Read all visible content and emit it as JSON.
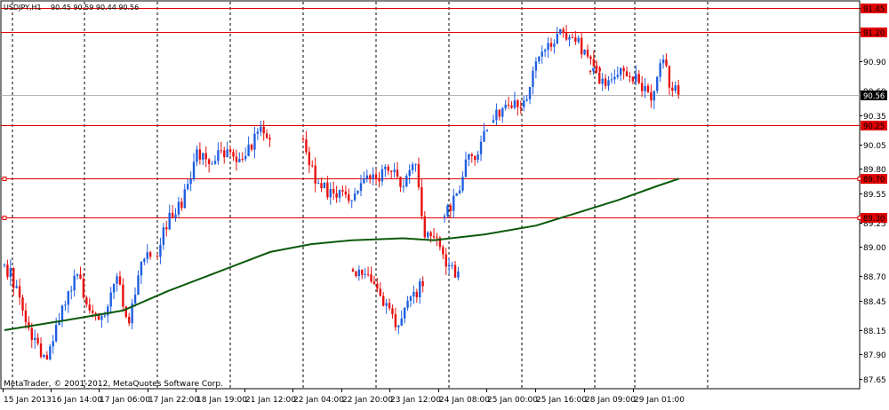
{
  "header": {
    "symbol": "USDJPY,H1",
    "ohlc": "90.45 90.59 90.44 90.56"
  },
  "footer": {
    "copyright": "MetaTrader, © 2001-2012, MetaQuotes Software Corp."
  },
  "colors": {
    "bull": "#1f5fe0",
    "bear": "#e81010",
    "level": "#e00000",
    "ma": "#0a5a0a",
    "grid": "#000000"
  },
  "chart_data": {
    "type": "candlestick",
    "symbol": "USDJPY",
    "timeframe": "H1",
    "ylim": [
      87.55,
      91.52
    ],
    "y_ticks": [
      {
        "value": 91.45,
        "label": "91.45"
      },
      {
        "value": 91.2,
        "label": "91.20"
      },
      {
        "value": 90.9,
        "label": "90.90"
      },
      {
        "value": 90.6,
        "label": "90.60"
      },
      {
        "value": 90.35,
        "label": "90.35"
      },
      {
        "value": 90.05,
        "label": "90.05"
      },
      {
        "value": 89.8,
        "label": "89.80"
      },
      {
        "value": 89.55,
        "label": "89.55"
      },
      {
        "value": 89.25,
        "label": "89.25"
      },
      {
        "value": 89.0,
        "label": "89.00"
      },
      {
        "value": 88.7,
        "label": "88.70"
      },
      {
        "value": 88.45,
        "label": "88.45"
      },
      {
        "value": 88.15,
        "label": "88.15"
      },
      {
        "value": 87.9,
        "label": "87.90"
      },
      {
        "value": 87.65,
        "label": "87.65"
      }
    ],
    "x_ticks": [
      "15 Jan 2013",
      "16 Jan 14:00",
      "17 Jan 06:00",
      "17 Jan 22:00",
      "18 Jan 19:00",
      "21 Jan 12:00",
      "22 Jan 04:00",
      "22 Jan 20:00",
      "23 Jan 12:00",
      "24 Jan 08:00",
      "25 Jan 00:00",
      "25 Jan 16:00",
      "28 Jan 09:00",
      "29 Jan 01:00"
    ],
    "horizontal_levels": [
      {
        "value": 91.45,
        "label": "91.45"
      },
      {
        "value": 91.2,
        "label": "91.20"
      },
      {
        "value": 90.25,
        "label": "90.25"
      },
      {
        "value": 89.7,
        "label": "89.70"
      },
      {
        "value": 89.3,
        "label": "89.30"
      }
    ],
    "current_price": {
      "value": 90.56,
      "label": "90.56"
    },
    "segments": [
      {
        "bars": 49,
        "start": 88.82,
        "anchors": [
          [
            0,
            88.82
          ],
          [
            4,
            88.6
          ],
          [
            9,
            88.05
          ],
          [
            14,
            87.85
          ],
          [
            19,
            88.4
          ],
          [
            24,
            88.72
          ],
          [
            28,
            88.35
          ],
          [
            33,
            88.3
          ],
          [
            37,
            88.7
          ],
          [
            41,
            88.22
          ],
          [
            45,
            88.85
          ],
          [
            48,
            88.9
          ]
        ]
      },
      {
        "bars": 38,
        "start": 88.9,
        "anchors": [
          [
            0,
            88.9
          ],
          [
            4,
            89.35
          ],
          [
            8,
            89.4
          ],
          [
            13,
            90.0
          ],
          [
            17,
            89.85
          ],
          [
            23,
            90.0
          ],
          [
            28,
            89.9
          ],
          [
            33,
            90.18
          ],
          [
            37,
            90.1
          ]
        ]
      },
      {
        "bars": 52,
        "start": 90.1,
        "anchors": [
          [
            0,
            90.1
          ],
          [
            4,
            89.65
          ],
          [
            10,
            89.55
          ],
          [
            16,
            89.48
          ],
          [
            22,
            89.7
          ],
          [
            28,
            89.78
          ],
          [
            33,
            89.62
          ],
          [
            37,
            89.85
          ],
          [
            40,
            89.1
          ],
          [
            43,
            89.1
          ],
          [
            47,
            88.8
          ],
          [
            51,
            88.75
          ]
        ]
      },
      {
        "bars": 24,
        "start": 88.75,
        "anchors": [
          [
            0,
            88.75
          ],
          [
            5,
            88.72
          ],
          [
            9,
            88.5
          ],
          [
            14,
            88.18
          ],
          [
            18,
            88.45
          ],
          [
            23,
            88.6
          ]
        ]
      },
      {
        "bars": 15,
        "start": 89.32,
        "anchors": [
          [
            0,
            89.32
          ],
          [
            4,
            89.55
          ],
          [
            8,
            89.95
          ],
          [
            11,
            89.95
          ],
          [
            14,
            90.2
          ]
        ]
      },
      {
        "bars": 36,
        "start": 90.3,
        "anchors": [
          [
            0,
            90.3
          ],
          [
            5,
            90.45
          ],
          [
            10,
            90.5
          ],
          [
            15,
            90.95
          ],
          [
            19,
            91.05
          ],
          [
            23,
            91.2
          ],
          [
            27,
            91.1
          ],
          [
            31,
            90.95
          ],
          [
            35,
            90.8
          ]
        ]
      },
      {
        "bars": 30,
        "start": 90.8,
        "anchors": [
          [
            0,
            90.8
          ],
          [
            5,
            90.65
          ],
          [
            11,
            90.8
          ],
          [
            16,
            90.68
          ],
          [
            20,
            90.5
          ],
          [
            24,
            90.92
          ],
          [
            27,
            90.6
          ],
          [
            29,
            90.56
          ]
        ]
      }
    ],
    "moving_average": [
      {
        "bar": 0,
        "value": 88.15
      },
      {
        "bar": 30,
        "value": 88.25
      },
      {
        "bar": 58,
        "value": 88.35
      },
      {
        "bar": 80,
        "value": 88.55
      },
      {
        "bar": 105,
        "value": 88.75
      },
      {
        "bar": 130,
        "value": 88.95
      },
      {
        "bar": 150,
        "value": 89.03
      },
      {
        "bar": 170,
        "value": 89.07
      },
      {
        "bar": 195,
        "value": 89.09
      },
      {
        "bar": 210,
        "value": 89.07
      },
      {
        "bar": 235,
        "value": 89.13
      },
      {
        "bar": 260,
        "value": 89.22
      },
      {
        "bar": 280,
        "value": 89.35
      },
      {
        "bar": 300,
        "value": 89.48
      },
      {
        "bar": 320,
        "value": 89.63
      },
      {
        "bar": 330,
        "value": 89.7
      }
    ]
  }
}
